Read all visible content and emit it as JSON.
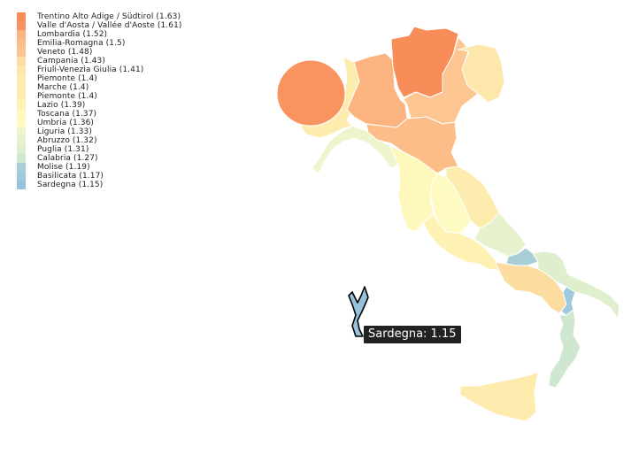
{
  "regions": [
    {
      "id": "trentino",
      "label": "Trentino Alto Adige / Südtirol (1.63)",
      "name": "Trentino Alto Adige / Südtirol",
      "value": 1.63,
      "color": "#f88d59"
    },
    {
      "id": "valle-aosta",
      "label": "Valle d'Aosta / Vallée d'Aoste (1.61)",
      "name": "Valle d'Aosta / Vallée d'Aoste",
      "value": 1.61,
      "color": "#f99460"
    },
    {
      "id": "lombardia",
      "label": "Lombardia (1.52)",
      "name": "Lombardia",
      "value": 1.52,
      "color": "#fbb480"
    },
    {
      "id": "emilia-romagna",
      "label": "Emilia-Romagna (1.5)",
      "name": "Emilia-Romagna",
      "value": 1.5,
      "color": "#fcbd88"
    },
    {
      "id": "veneto",
      "label": "Veneto (1.48)",
      "name": "Veneto",
      "value": 1.48,
      "color": "#fdc592"
    },
    {
      "id": "campania",
      "label": "Campania (1.43)",
      "name": "Campania",
      "value": 1.43,
      "color": "#fddc9f"
    },
    {
      "id": "friuli",
      "label": "Friuli-Venezia Giulia (1.41)",
      "name": "Friuli-Venezia Giulia",
      "value": 1.41,
      "color": "#fee7aa"
    },
    {
      "id": "piemonte-1",
      "label": "Piemonte (1.4)",
      "name": "Piemonte",
      "value": 1.4,
      "color": "#feecaf"
    },
    {
      "id": "marche",
      "label": "Marche (1.4)",
      "name": "Marche",
      "value": 1.4,
      "color": "#feecaf"
    },
    {
      "id": "piemonte-2",
      "label": "Piemonte (1.4)",
      "name": "Piemonte",
      "value": 1.4,
      "color": "#feecaf"
    },
    {
      "id": "lazio",
      "label": "Lazio (1.39)",
      "name": "Lazio",
      "value": 1.39,
      "color": "#fef1b4"
    },
    {
      "id": "toscana",
      "label": "Toscana (1.37)",
      "name": "Toscana",
      "value": 1.37,
      "color": "#fef8bc"
    },
    {
      "id": "umbria",
      "label": "Umbria (1.36)",
      "name": "Umbria",
      "value": 1.36,
      "color": "#fdfbc2"
    },
    {
      "id": "liguria",
      "label": "Liguria (1.33)",
      "name": "Liguria",
      "value": 1.33,
      "color": "#eef5cd"
    },
    {
      "id": "abruzzo",
      "label": "Abruzzo (1.32)",
      "name": "Abruzzo",
      "value": 1.32,
      "color": "#e6f1cd"
    },
    {
      "id": "puglia",
      "label": "Puglia (1.31)",
      "name": "Puglia",
      "value": 1.31,
      "color": "#dfeecd"
    },
    {
      "id": "calabria",
      "label": "Calabria (1.27)",
      "name": "Calabria",
      "value": 1.27,
      "color": "#cfe6cf"
    },
    {
      "id": "molise",
      "label": "Molise (1.19)",
      "name": "Molise",
      "value": 1.19,
      "color": "#a8cfd8"
    },
    {
      "id": "basilicata",
      "label": "Basilicata (1.17)",
      "name": "Basilicata",
      "value": 1.17,
      "color": "#a0cadb"
    },
    {
      "id": "sardegna",
      "label": "Sardegna (1.15)",
      "name": "Sardegna",
      "value": 1.15,
      "color": "#96c3db"
    }
  ],
  "tooltip": {
    "text": "Sardegna: 1.15"
  }
}
